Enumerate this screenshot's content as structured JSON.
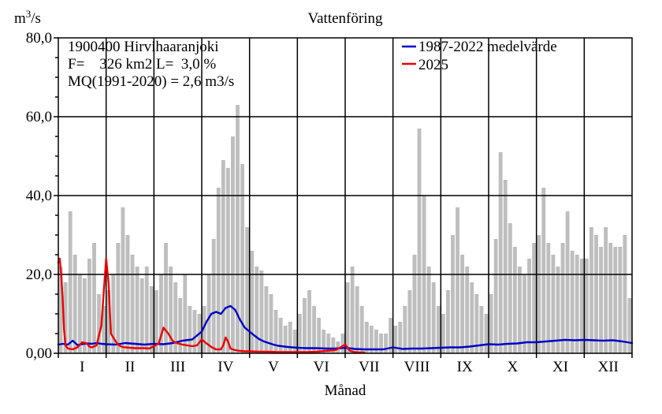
{
  "chart_data": {
    "type": "line",
    "title": "Vattenföring",
    "ylabel": "m3/s",
    "xlabel": "Månad",
    "ylim": [
      0,
      80
    ],
    "yticks": [
      "0,00",
      "20,0",
      "40,0",
      "60,0",
      "80,0"
    ],
    "ytick_values": [
      0,
      20,
      40,
      60,
      80
    ],
    "x_domain": [
      0,
      12
    ],
    "months": [
      "I",
      "II",
      "III",
      "IV",
      "V",
      "VI",
      "VII",
      "VIII",
      "IX",
      "X",
      "XI",
      "XII"
    ],
    "grid": true,
    "legend_placement": "top-right",
    "info_text": [
      "1900400 Hirvihaaranjoki",
      "F=    326 km2 L=  3,0 %",
      "MQ(1991-2020) = 2,6 m3/s"
    ],
    "colors": {
      "historical_range": "#bebebe",
      "mean": "#0000cc",
      "current": "#ee0000",
      "axis": "#000000"
    },
    "series": [
      {
        "name": "",
        "kind": "historical-max-bars",
        "x": [
          0.05,
          0.15,
          0.25,
          0.35,
          0.45,
          0.55,
          0.65,
          0.75,
          0.85,
          0.95,
          1.05,
          1.15,
          1.25,
          1.35,
          1.45,
          1.55,
          1.65,
          1.75,
          1.85,
          1.95,
          2.05,
          2.15,
          2.25,
          2.35,
          2.45,
          2.55,
          2.65,
          2.75,
          2.85,
          2.95,
          3.05,
          3.15,
          3.25,
          3.35,
          3.45,
          3.55,
          3.65,
          3.75,
          3.85,
          3.95,
          4.05,
          4.15,
          4.25,
          4.35,
          4.45,
          4.55,
          4.65,
          4.75,
          4.85,
          4.95,
          5.05,
          5.15,
          5.25,
          5.35,
          5.45,
          5.55,
          5.65,
          5.75,
          5.85,
          5.95,
          6.05,
          6.15,
          6.25,
          6.35,
          6.45,
          6.55,
          6.65,
          6.75,
          6.85,
          6.95,
          7.05,
          7.15,
          7.25,
          7.35,
          7.45,
          7.55,
          7.65,
          7.75,
          7.85,
          7.95,
          8.05,
          8.15,
          8.25,
          8.35,
          8.45,
          8.55,
          8.65,
          8.75,
          8.85,
          8.95,
          9.05,
          9.15,
          9.25,
          9.35,
          9.45,
          9.55,
          9.65,
          9.75,
          9.85,
          9.95,
          10.05,
          10.15,
          10.25,
          10.35,
          10.45,
          10.55,
          10.65,
          10.75,
          10.85,
          10.95,
          11.05,
          11.15,
          11.25,
          11.35,
          11.45,
          11.55,
          11.65,
          11.75,
          11.85,
          11.95
        ],
        "values": [
          22,
          18,
          36,
          25,
          20,
          19,
          24,
          28,
          15,
          12,
          16,
          20,
          28,
          37,
          30,
          25,
          22,
          19,
          22,
          17,
          16,
          20,
          28,
          22,
          18,
          14,
          20,
          12,
          11,
          10,
          12,
          20,
          29,
          42,
          49,
          47,
          55,
          63,
          48,
          32,
          26,
          22,
          21,
          17,
          15,
          11,
          9,
          7,
          8,
          6,
          10,
          14,
          16,
          12,
          9,
          6,
          5,
          4,
          3,
          5,
          18,
          22,
          17,
          12,
          8,
          7,
          6,
          5,
          5,
          9,
          7,
          8,
          12,
          16,
          25,
          57,
          40,
          22,
          18,
          12,
          10,
          16,
          30,
          37,
          25,
          22,
          18,
          15,
          12,
          10,
          15,
          29,
          51,
          44,
          33,
          27,
          22,
          20,
          24,
          28,
          30,
          42,
          28,
          25,
          22,
          28,
          36,
          26,
          25,
          24,
          24,
          32,
          30,
          27,
          32,
          28,
          27,
          27,
          30,
          14
        ]
      },
      {
        "name": "1987-2022 medelvärde",
        "kind": "line",
        "x": [
          0,
          0.1,
          0.2,
          0.3,
          0.4,
          0.5,
          0.6,
          0.7,
          0.8,
          0.9,
          1.0,
          1.2,
          1.4,
          1.6,
          1.8,
          2.0,
          2.2,
          2.4,
          2.5,
          2.6,
          2.8,
          3.0,
          3.1,
          3.2,
          3.3,
          3.4,
          3.5,
          3.6,
          3.7,
          3.8,
          3.9,
          4.0,
          4.1,
          4.2,
          4.3,
          4.4,
          4.5,
          4.6,
          4.8,
          5.0,
          5.2,
          5.4,
          5.6,
          5.8,
          6.0,
          6.2,
          6.4,
          6.6,
          6.8,
          7.0,
          7.2,
          7.4,
          7.6,
          7.8,
          8.0,
          8.2,
          8.4,
          8.6,
          8.8,
          9.0,
          9.2,
          9.4,
          9.6,
          9.8,
          10.0,
          10.2,
          10.4,
          10.6,
          10.8,
          11.0,
          11.2,
          11.4,
          11.6,
          11.8,
          12.0
        ],
        "values": [
          2.2,
          2.4,
          2.2,
          3.2,
          2.1,
          2.3,
          2.5,
          2.4,
          2.6,
          2.4,
          2.3,
          2.2,
          2.6,
          2.4,
          2.2,
          2.4,
          2.3,
          2.6,
          2.9,
          3.2,
          3.5,
          5.5,
          8.0,
          10.0,
          10.5,
          10.0,
          11.5,
          12.0,
          11.0,
          8.5,
          6.5,
          5.5,
          4.5,
          3.6,
          3.0,
          2.6,
          2.2,
          1.9,
          1.6,
          1.4,
          1.3,
          1.3,
          1.2,
          1.2,
          1.4,
          1.1,
          1.0,
          1.0,
          1.0,
          1.5,
          1.1,
          1.2,
          1.2,
          1.3,
          1.4,
          1.5,
          1.5,
          1.7,
          2.0,
          2.3,
          2.2,
          2.4,
          2.5,
          2.8,
          2.8,
          3.0,
          3.2,
          3.4,
          3.3,
          3.4,
          3.3,
          3.2,
          3.3,
          3.0,
          2.6
        ]
      },
      {
        "name": "2025",
        "kind": "line",
        "x": [
          0.0,
          0.03,
          0.06,
          0.09,
          0.12,
          0.15,
          0.2,
          0.3,
          0.4,
          0.5,
          0.6,
          0.65,
          0.7,
          0.8,
          0.9,
          1.0,
          1.05,
          1.1,
          1.15,
          1.2,
          1.25,
          1.3,
          1.35,
          1.4,
          1.5,
          1.6,
          1.7,
          1.8,
          1.9,
          2.0,
          2.1,
          2.2,
          2.3,
          2.4,
          2.5,
          2.6,
          2.7,
          2.8,
          2.9,
          3.0,
          3.1,
          3.2,
          3.3,
          3.4,
          3.45,
          3.5,
          3.55,
          3.6,
          3.7,
          3.8,
          3.9,
          4.0,
          4.2,
          4.4,
          4.6,
          4.8,
          5.0,
          5.2,
          5.4,
          5.6,
          5.8,
          6.0,
          6.1,
          6.2,
          6.3,
          6.4
        ],
        "values": [
          23.0,
          24.0,
          20.0,
          14.0,
          6.0,
          2.0,
          1.2,
          1.0,
          1.5,
          2.8,
          2.5,
          1.7,
          1.5,
          2.0,
          7.0,
          24.0,
          18.0,
          5.0,
          4.0,
          3.0,
          2.2,
          1.8,
          1.6,
          1.5,
          1.4,
          1.3,
          1.3,
          1.3,
          1.2,
          1.8,
          2.5,
          6.5,
          5.0,
          3.0,
          2.5,
          2.2,
          2.0,
          1.8,
          2.0,
          3.5,
          2.5,
          1.6,
          1.0,
          1.0,
          2.0,
          4.0,
          3.0,
          1.2,
          0.8,
          0.6,
          0.5,
          0.5,
          0.4,
          0.4,
          0.3,
          0.3,
          0.3,
          0.3,
          0.4,
          0.6,
          0.8,
          2.2,
          0.6,
          0.3,
          0.2,
          0.2
        ]
      }
    ]
  }
}
